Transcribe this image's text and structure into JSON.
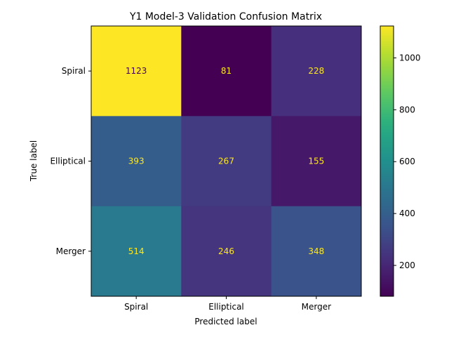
{
  "chart_data": {
    "type": "heatmap",
    "title": "Y1 Model-3 Validation Confusion Matrix",
    "xlabel": "Predicted label",
    "ylabel": "True label",
    "x_categories": [
      "Spiral",
      "Elliptical",
      "Merger"
    ],
    "y_categories": [
      "Spiral",
      "Elliptical",
      "Merger"
    ],
    "values": [
      [
        1123,
        81,
        228
      ],
      [
        393,
        267,
        155
      ],
      [
        514,
        246,
        348
      ]
    ],
    "colormap": "viridis",
    "colorbar": {
      "range": [
        81,
        1123
      ],
      "ticks": [
        200,
        400,
        600,
        800,
        1000
      ],
      "tick_labels": [
        "200",
        "400",
        "600",
        "800",
        "1000"
      ]
    },
    "cell_text_colors": {
      "dark": "#fde725",
      "light": "#440154"
    },
    "grid": false,
    "legend": "none"
  }
}
